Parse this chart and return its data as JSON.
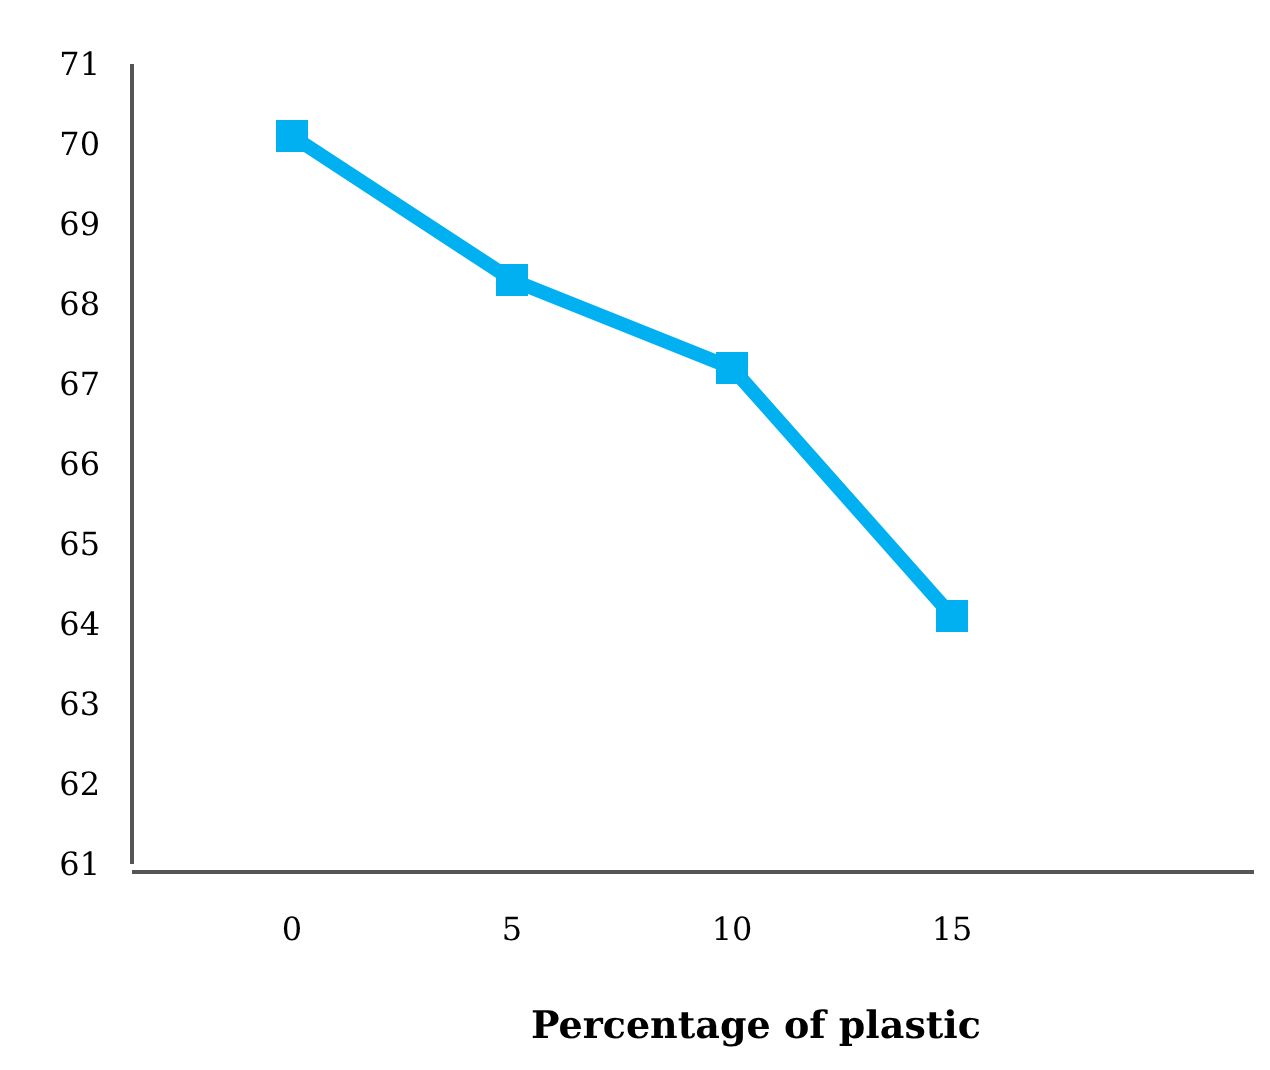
{
  "chart_data": {
    "type": "line",
    "xlabel": "Percentage of plastic",
    "categories": [
      "0",
      "5",
      "10",
      "15"
    ],
    "series": [
      {
        "color": "#00b0f0",
        "values": [
          70.1,
          68.3,
          67.2,
          64.1
        ]
      }
    ],
    "ylim": [
      61,
      71
    ],
    "yticks": [
      61,
      62,
      63,
      64,
      65,
      66,
      67,
      68,
      69,
      70,
      71
    ],
    "grid": false,
    "marker": "square",
    "line_style": "solid"
  }
}
